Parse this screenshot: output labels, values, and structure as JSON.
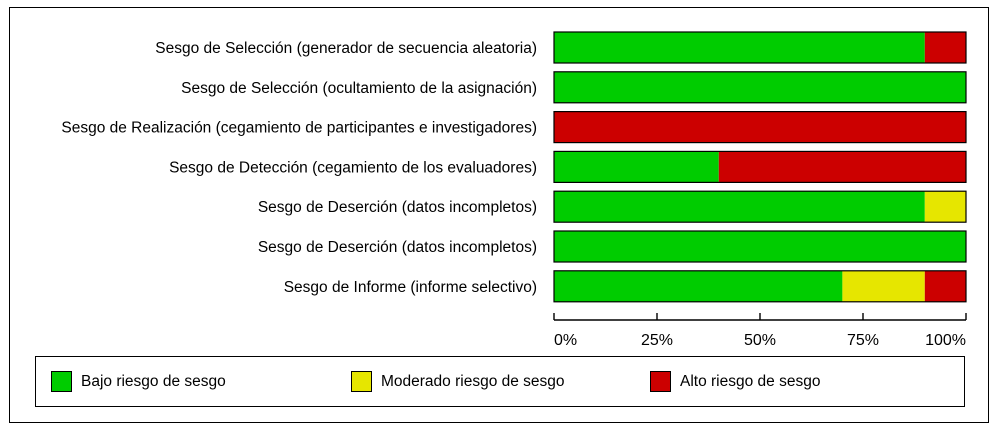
{
  "chart_data": {
    "type": "bar",
    "orientation": "horizontal",
    "stacked": true,
    "categories": [
      "Sesgo de Selección (generador de secuencia aleatoria)",
      "Sesgo de Selección (ocultamiento de la asignación)",
      "Sesgo de Realización (cegamiento de participantes e investigadores)",
      "Sesgo de Detección (cegamiento de los evaluadores)",
      "Sesgo de Deserción (datos incompletos)",
      "Sesgo de Deserción (datos incompletos)",
      "Sesgo de Informe (informe selectivo)"
    ],
    "series": [
      {
        "name": "Bajo riesgo de sesgo",
        "color": "#00cc00",
        "values": [
          90,
          100,
          0,
          40,
          90,
          100,
          70
        ]
      },
      {
        "name": "Moderado riesgo de sesgo",
        "color": "#e6e600",
        "values": [
          0,
          0,
          0,
          0,
          10,
          0,
          20
        ]
      },
      {
        "name": "Alto riesgo de sesgo",
        "color": "#cc0000",
        "values": [
          10,
          0,
          100,
          60,
          0,
          0,
          10
        ]
      }
    ],
    "x_ticks": [
      "0%",
      "25%",
      "50%",
      "75%",
      "100%"
    ],
    "xlim": [
      0,
      100
    ],
    "title": "",
    "xlabel": "",
    "ylabel": "",
    "grid": false,
    "legend_position": "bottom"
  }
}
